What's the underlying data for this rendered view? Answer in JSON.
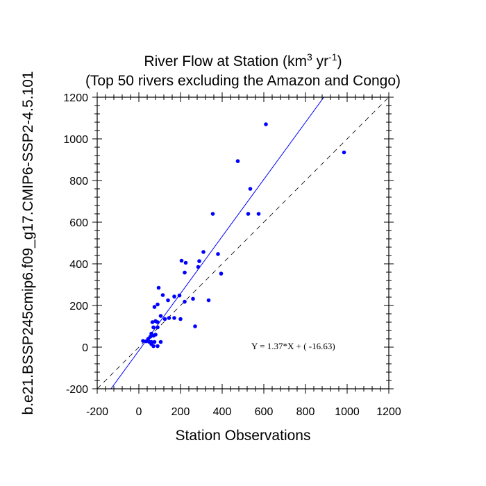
{
  "chart_data": {
    "type": "scatter",
    "title": "River Flow at Station (km",
    "title_sup_1": "3",
    "title_mid": " yr",
    "title_sup_2": "-1",
    "title_end": ")",
    "subtitle": "(Top 50 rivers excluding the Amazon and Congo)",
    "xlabel": "Station Observations",
    "ylabel": "b.e21.BSSP245cmip6.f09_g17.CMIP6-SSP2-4.5.101",
    "xlim": [
      -200,
      1200
    ],
    "ylim": [
      -200,
      1200
    ],
    "xticks": [
      -200,
      0,
      200,
      400,
      600,
      800,
      1000,
      1200
    ],
    "yticks": [
      -200,
      0,
      200,
      400,
      600,
      800,
      1000,
      1200
    ],
    "xtick_labels": [
      "-200",
      "0",
      "200",
      "400",
      "600",
      "800",
      "1000",
      "1200"
    ],
    "ytick_labels": [
      "-200",
      "0",
      "200",
      "400",
      "600",
      "800",
      "1000",
      "1200"
    ],
    "regression": {
      "slope": 1.37,
      "intercept": -16.63,
      "color": "#0000ff"
    },
    "identity_line": {
      "style": "dashed",
      "color": "#000000"
    },
    "annotation": "Y =  1.37*X + (  -16.63)",
    "annotation_position": "bottom-right",
    "point_color": "#0000ff",
    "points": [
      [
        985,
        935
      ],
      [
        610,
        1070
      ],
      [
        475,
        893
      ],
      [
        535,
        760
      ],
      [
        355,
        640
      ],
      [
        525,
        640
      ],
      [
        575,
        640
      ],
      [
        310,
        457
      ],
      [
        380,
        447
      ],
      [
        205,
        415
      ],
      [
        290,
        413
      ],
      [
        225,
        405
      ],
      [
        285,
        385
      ],
      [
        220,
        358
      ],
      [
        395,
        353
      ],
      [
        95,
        285
      ],
      [
        75,
        193
      ],
      [
        115,
        250
      ],
      [
        140,
        225
      ],
      [
        170,
        243
      ],
      [
        195,
        248
      ],
      [
        220,
        218
      ],
      [
        260,
        232
      ],
      [
        335,
        225
      ],
      [
        90,
        205
      ],
      [
        105,
        150
      ],
      [
        125,
        135
      ],
      [
        145,
        140
      ],
      [
        170,
        140
      ],
      [
        200,
        135
      ],
      [
        80,
        125
      ],
      [
        65,
        120
      ],
      [
        90,
        120
      ],
      [
        270,
        100
      ],
      [
        70,
        95
      ],
      [
        90,
        95
      ],
      [
        60,
        65
      ],
      [
        70,
        55
      ],
      [
        80,
        60
      ],
      [
        55,
        50
      ],
      [
        20,
        30
      ],
      [
        35,
        28
      ],
      [
        50,
        25
      ],
      [
        60,
        25
      ],
      [
        75,
        25
      ],
      [
        105,
        25
      ],
      [
        60,
        15
      ],
      [
        70,
        5
      ],
      [
        90,
        5
      ],
      [
        45,
        40
      ]
    ]
  }
}
